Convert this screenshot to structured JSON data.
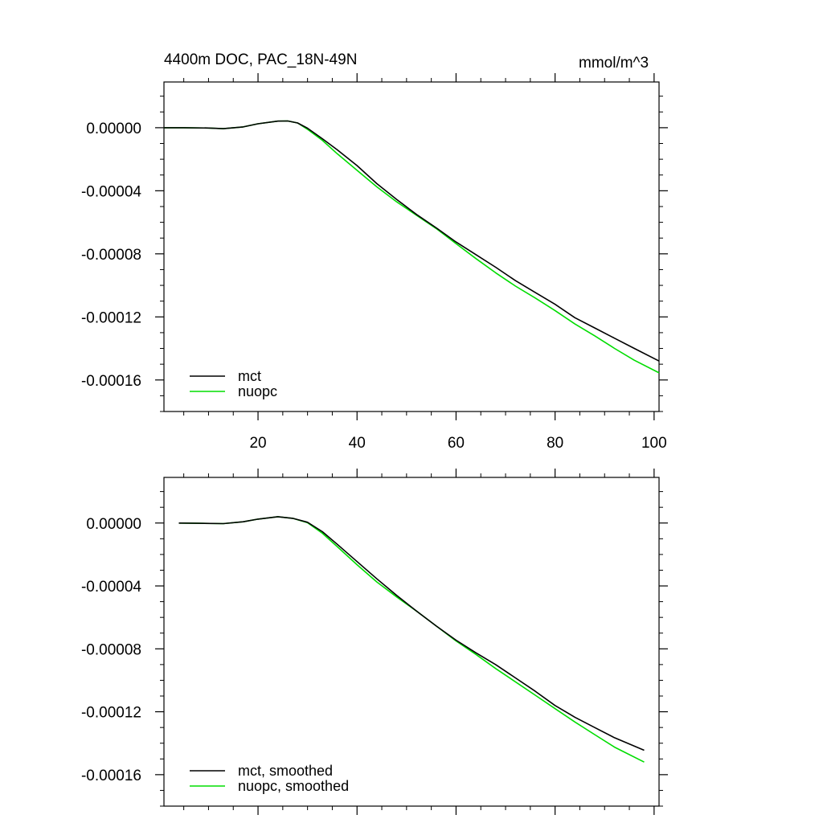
{
  "figure": {
    "title_left": "4400m DOC, PAC_18N-49N",
    "title_right": "mmol/m^3"
  },
  "colors": {
    "mct": "#000000",
    "nuopc": "#00dd00",
    "axes": "#000000"
  },
  "chart_data": [
    {
      "type": "line",
      "title": "4400m DOC, PAC_18N-49N",
      "units": "mmol/m^3",
      "xlim": [
        1,
        101
      ],
      "ylim": [
        -0.00018,
        2.9e-05
      ],
      "x_ticks": [
        20,
        40,
        60,
        80,
        100
      ],
      "x_tick_labels": [
        "20",
        "40",
        "60",
        "80",
        "100"
      ],
      "y_ticks": [
        0.0,
        -4e-05,
        -8e-05,
        -0.00012,
        -0.00016
      ],
      "y_tick_labels": [
        "0.00000",
        "-0.00004",
        "-0.00008",
        "-0.00012",
        "-0.00016"
      ],
      "legend_position": "bottom-left",
      "series": [
        {
          "name": "mct",
          "color": "#000000",
          "x": [
            1,
            5,
            10,
            13,
            17,
            20,
            24,
            26,
            28,
            30,
            33,
            36,
            40,
            44,
            48,
            52,
            56,
            60,
            64,
            68,
            72,
            76,
            80,
            84,
            88,
            92,
            96,
            101
          ],
          "y": [
            0.0,
            0.0,
            -2e-07,
            -6e-07,
            5e-07,
            2.5e-06,
            4.2e-06,
            4.3e-06,
            3e-06,
            -3e-07,
            -7e-06,
            -1.4e-05,
            -2.4e-05,
            -3.55e-05,
            -4.55e-05,
            -5.5e-05,
            -6.35e-05,
            -7.25e-05,
            -8.05e-05,
            -8.85e-05,
            -9.7e-05,
            -0.0001045,
            -0.000112,
            -0.0001205,
            -0.000127,
            -0.0001335,
            -0.00014,
            -0.000148
          ]
        },
        {
          "name": "nuopc",
          "color": "#00dd00",
          "x": [
            1,
            5,
            10,
            13,
            17,
            20,
            24,
            26,
            28,
            30,
            33,
            36,
            40,
            44,
            48,
            52,
            56,
            60,
            64,
            68,
            72,
            76,
            80,
            84,
            88,
            92,
            96,
            101
          ],
          "y": [
            0.0,
            0.0,
            -2e-07,
            -6e-07,
            5e-07,
            2.5e-06,
            4.2e-06,
            4.3e-06,
            3e-06,
            -1e-06,
            -8e-06,
            -1.65e-05,
            -2.7e-05,
            -3.75e-05,
            -4.7e-05,
            -5.55e-05,
            -6.4e-05,
            -7.35e-05,
            -8.3e-05,
            -9.2e-05,
            -0.0001005,
            -0.000108,
            -0.000116,
            -0.0001245,
            -0.000132,
            -0.00014,
            -0.0001475,
            -0.0001555
          ]
        }
      ]
    },
    {
      "type": "line",
      "xlim": [
        1,
        101
      ],
      "ylim": [
        -0.00018,
        2.9e-05
      ],
      "x_ticks": [
        20,
        40,
        60,
        80,
        100
      ],
      "y_ticks": [
        0.0,
        -4e-05,
        -8e-05,
        -0.00012,
        -0.00016
      ],
      "y_tick_labels": [
        "0.00000",
        "-0.00004",
        "-0.00008",
        "-0.00012",
        "-0.00016"
      ],
      "legend_position": "bottom-left",
      "series": [
        {
          "name": "mct, smoothed",
          "color": "#000000",
          "x": [
            4,
            8,
            13,
            17,
            20,
            24,
            27,
            30,
            33,
            36,
            40,
            44,
            48,
            52,
            56,
            60,
            64,
            68,
            72,
            76,
            80,
            84,
            88,
            92,
            98
          ],
          "y": [
            0.0,
            -2e-07,
            -4e-07,
            8e-07,
            2.5e-06,
            4e-06,
            3e-06,
            5e-07,
            -5.5e-06,
            -1.35e-05,
            -2.45e-05,
            -3.55e-05,
            -4.6e-05,
            -5.6e-05,
            -6.55e-05,
            -7.45e-05,
            -8.25e-05,
            -9e-05,
            -9.85e-05,
            -0.000107,
            -0.000116,
            -0.0001235,
            -0.00013,
            -0.0001365,
            -0.0001445
          ]
        },
        {
          "name": "nuopc, smoothed",
          "color": "#00dd00",
          "x": [
            4,
            8,
            13,
            17,
            20,
            24,
            27,
            30,
            33,
            36,
            40,
            44,
            48,
            52,
            56,
            60,
            64,
            68,
            72,
            76,
            80,
            84,
            88,
            92,
            98
          ],
          "y": [
            0.0,
            -2e-07,
            -4e-07,
            8e-07,
            2.5e-06,
            4e-06,
            3e-06,
            2e-07,
            -6.5e-06,
            -1.5e-05,
            -2.65e-05,
            -3.75e-05,
            -4.7e-05,
            -5.6e-05,
            -6.55e-05,
            -7.5e-05,
            -8.35e-05,
            -9.25e-05,
            -0.000101,
            -0.0001095,
            -0.000118,
            -0.0001265,
            -0.0001345,
            -0.0001425,
            -0.000152
          ]
        }
      ]
    }
  ]
}
